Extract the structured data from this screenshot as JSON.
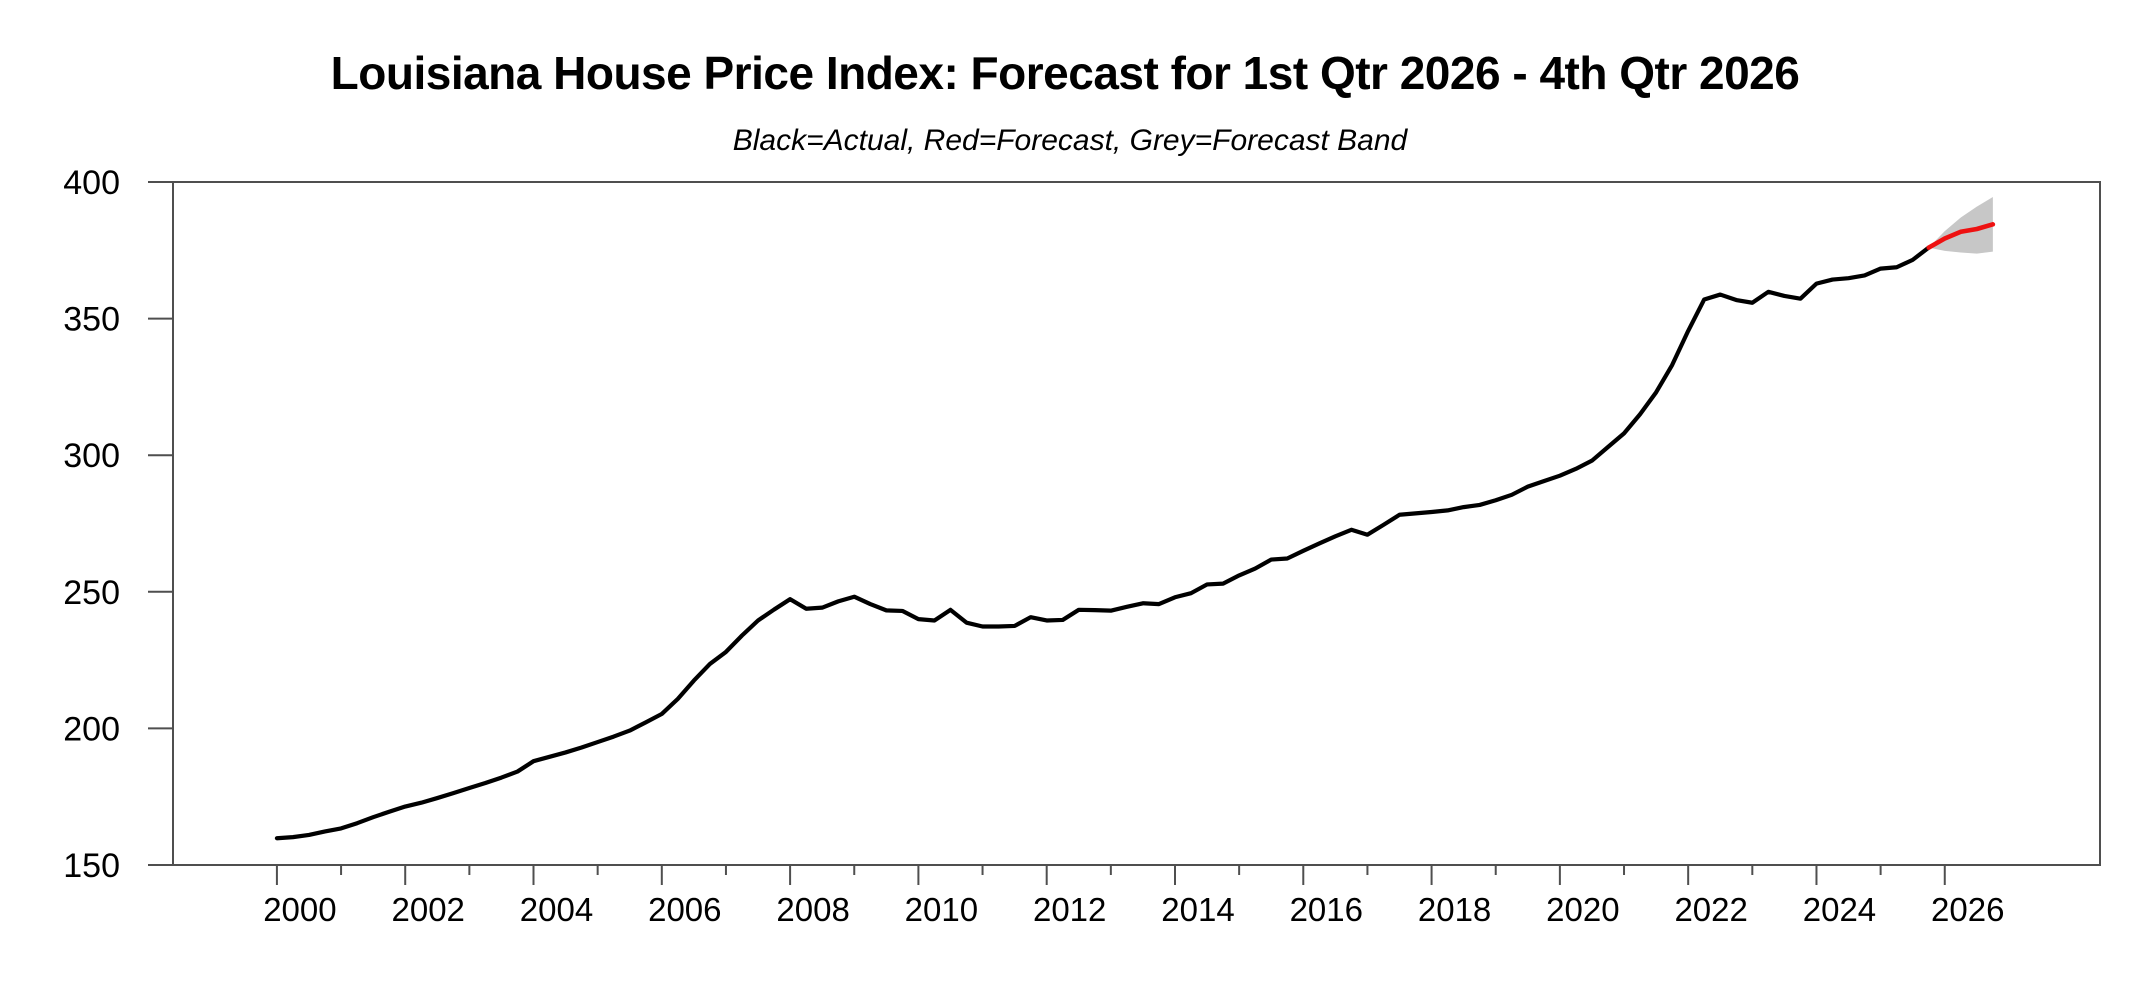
{
  "page": {
    "background": "#ffffff"
  },
  "chart_data": {
    "type": "line",
    "title": "Louisiana House Price Index: Forecast for 1st Qtr 2026 - 4th Qtr 2026",
    "subtitle": "Black=Actual, Red=Forecast, Grey=Forecast Band",
    "legend": [
      {
        "label": "Actual",
        "color": "#000000"
      },
      {
        "label": "Forecast",
        "color": "#ee1111"
      },
      {
        "label": "Forecast Band",
        "color": "#c7c7c7"
      }
    ],
    "x_axis": {
      "min": 1998.38,
      "max": 2028.42,
      "major_ticks": [
        2000,
        2002,
        2004,
        2006,
        2008,
        2010,
        2012,
        2014,
        2016,
        2018,
        2020,
        2022,
        2024,
        2026
      ],
      "minor_ticks": [
        2001,
        2003,
        2005,
        2007,
        2009,
        2011,
        2013,
        2015,
        2017,
        2019,
        2021,
        2023,
        2025
      ],
      "labels": [
        "2000",
        "2002",
        "2004",
        "2006",
        "2008",
        "2010",
        "2012",
        "2014",
        "2016",
        "2018",
        "2020",
        "2022",
        "2024",
        "2026"
      ]
    },
    "y_axis": {
      "min": 150,
      "max": 400,
      "ticks": [
        400,
        350,
        300,
        250,
        200,
        150
      ],
      "labels": [
        "400",
        "350",
        "300",
        "250",
        "200",
        "150"
      ]
    },
    "series": [
      {
        "name": "Actual",
        "color": "#000000",
        "stroke_width": 4.2,
        "start_year": 2000,
        "period_years": 0.25,
        "values": [
          159.8,
          160.2,
          161.0,
          162.3,
          163.4,
          165.3,
          167.5,
          169.5,
          171.4,
          172.8,
          174.5,
          176.3,
          178.2,
          180.0,
          182.0,
          184.2,
          188.0,
          189.6,
          191.2,
          193.0,
          195.0,
          197.0,
          199.2,
          202.2,
          205.3,
          210.8,
          217.5,
          223.6,
          228.0,
          234.0,
          239.5,
          243.5,
          247.3,
          243.8,
          244.2,
          246.5,
          248.2,
          245.5,
          243.2,
          243.0,
          240.0,
          239.5,
          243.4,
          238.7,
          237.3,
          237.3,
          237.5,
          240.7,
          239.5,
          239.7,
          243.4,
          243.3,
          243.1,
          244.5,
          245.8,
          245.5,
          248.0,
          249.5,
          252.7,
          253.0,
          256.0,
          258.5,
          261.8,
          262.2,
          265.0,
          267.7,
          270.3,
          272.7,
          270.9,
          274.5,
          278.2,
          278.7,
          279.2,
          279.8,
          281.0,
          281.8,
          283.5,
          285.5,
          288.5,
          290.5,
          292.5,
          295.0,
          298.0,
          303.0,
          308.0,
          315.0,
          323.0,
          333.0,
          345.5,
          357.0,
          358.8,
          356.8,
          355.8,
          359.8,
          358.3,
          357.3,
          362.8,
          364.3,
          364.8,
          365.8,
          368.3,
          368.8,
          371.5,
          376.0
        ]
      },
      {
        "name": "Forecast",
        "color": "#ee1111",
        "stroke_width": 4.6,
        "start_year": 2025.75,
        "period_years": 0.25,
        "values": [
          376.0,
          379.3,
          381.8,
          382.8,
          384.5
        ]
      }
    ],
    "forecast_band": {
      "name": "Forecast Band",
      "color": "#c7c7c7",
      "start_year": 2025.75,
      "period_years": 0.25,
      "upper": [
        376.0,
        382.0,
        387.0,
        391.0,
        394.5
      ],
      "lower": [
        376.0,
        374.8,
        374.2,
        373.8,
        374.5
      ]
    }
  }
}
